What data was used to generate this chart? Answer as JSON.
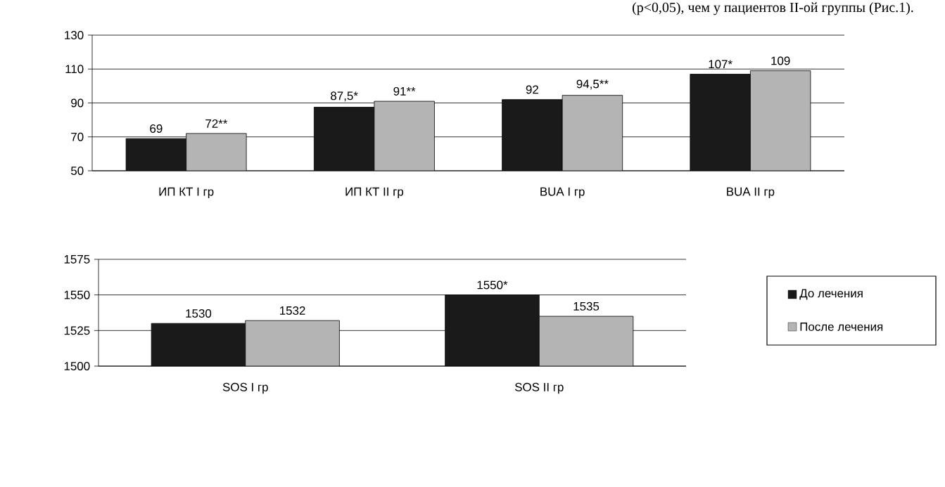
{
  "chart_data": [
    {
      "type": "bar",
      "categories": [
        "ИП КТ I гр",
        "ИП КТ II гр",
        "BUA I гр",
        "BUA II гр"
      ],
      "ylim": [
        50,
        130
      ],
      "yticks": [
        50,
        70,
        90,
        110,
        130
      ],
      "grid": "y",
      "series": [
        {
          "color": "#1a1a1a",
          "values": [
            69,
            87.5,
            92,
            107
          ],
          "value_labels": [
            "69",
            "87,5*",
            "92",
            "107*"
          ]
        },
        {
          "color": "#b4b4b4",
          "values": [
            72,
            91,
            94.5,
            109
          ],
          "value_labels": [
            "72**",
            "91**",
            "94,5**",
            "109"
          ]
        }
      ],
      "annotations": [
        "(р<0,05), чем у пациентов II-ой группы (Рис.1)."
      ]
    },
    {
      "type": "bar",
      "categories": [
        "SOS I гр",
        "SOS II гр"
      ],
      "ylim": [
        1500,
        1575
      ],
      "yticks": [
        1500,
        1525,
        1550,
        1575
      ],
      "grid": "y",
      "legend": "right",
      "series": [
        {
          "name": "До лечения",
          "color": "#1a1a1a",
          "values": [
            1530,
            1550
          ],
          "value_labels": [
            "1530",
            "1550*"
          ]
        },
        {
          "name": "После лечения",
          "color": "#b4b4b4",
          "values": [
            1532,
            1535
          ],
          "value_labels": [
            "1532",
            "1535"
          ]
        }
      ]
    }
  ]
}
